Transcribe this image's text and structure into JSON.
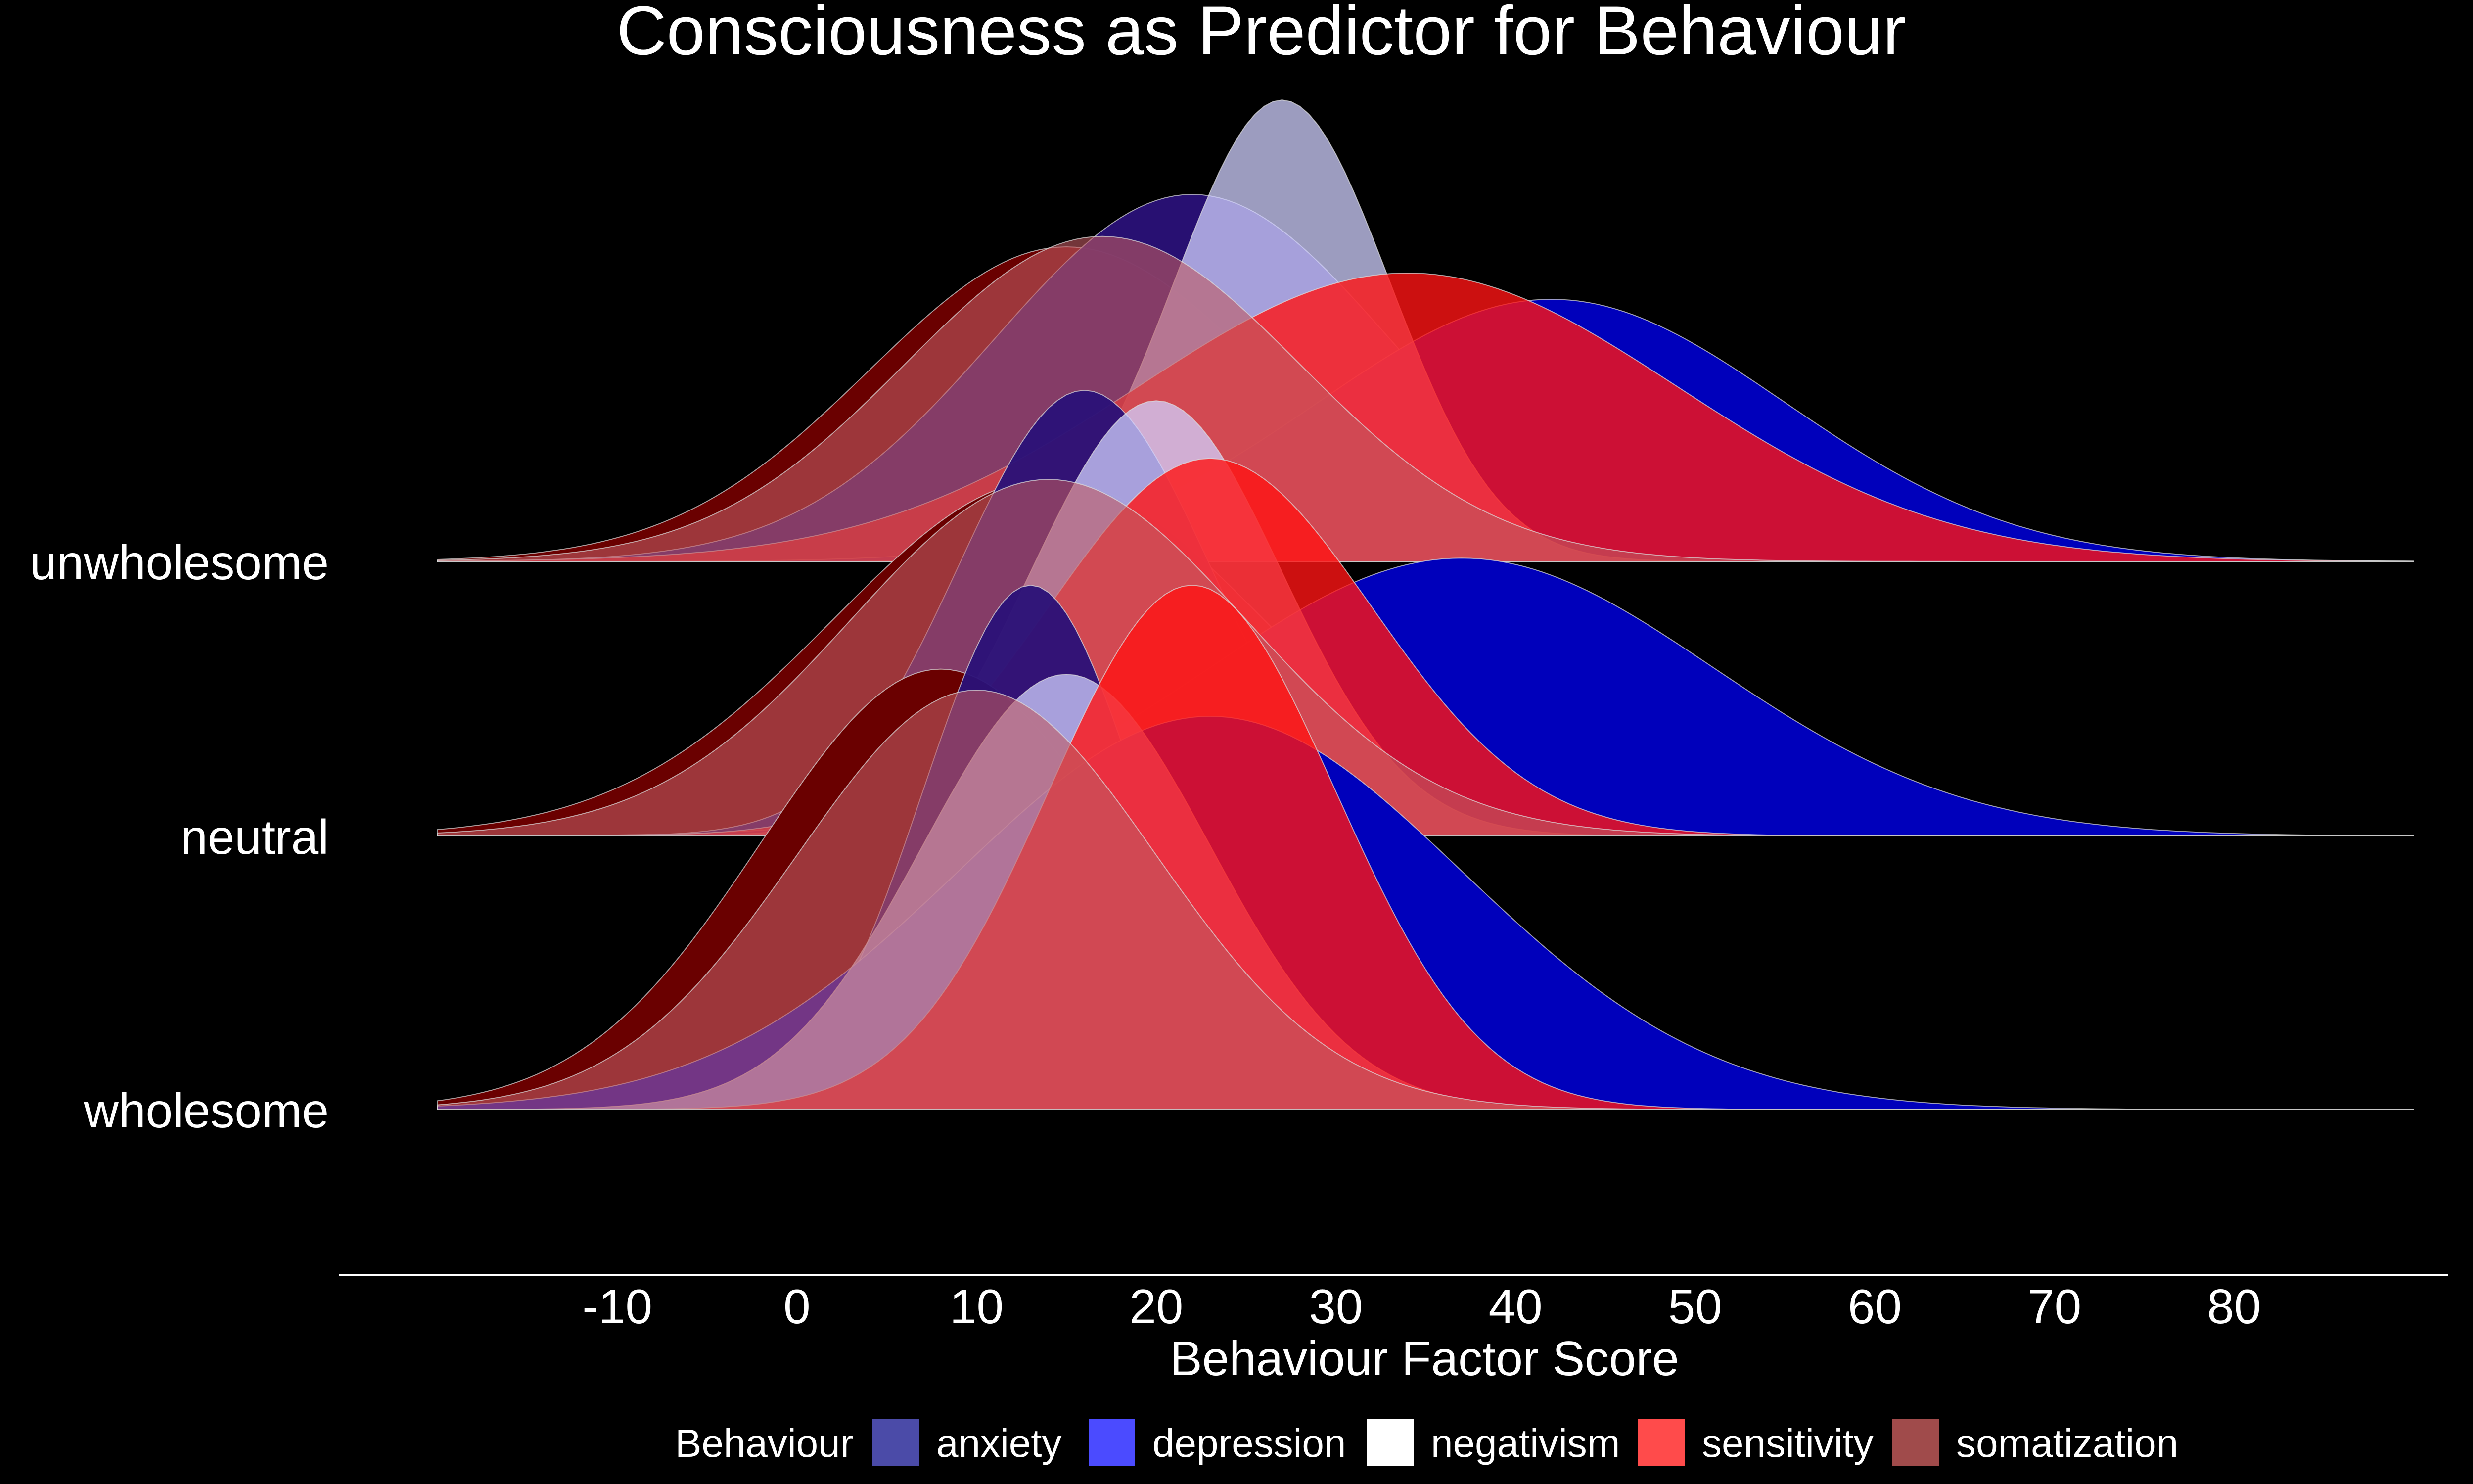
{
  "chart_data": {
    "type": "ridgeline",
    "title": "Consciousness as Predictor for Behaviour",
    "xlabel": "Behaviour Factor Score",
    "ylabel": "",
    "xlim": [
      -20,
      90
    ],
    "x_ticks": [
      -10,
      0,
      10,
      20,
      30,
      40,
      50,
      60,
      70,
      80
    ],
    "categories": [
      "wholesome",
      "neutral",
      "unwholesome"
    ],
    "legend": {
      "title": "Behaviour",
      "position": "bottom",
      "entries": [
        {
          "name": "anxiety",
          "color": "#4b4ba8"
        },
        {
          "name": "depression",
          "color": "#4b4bff"
        },
        {
          "name": "negativism",
          "color": "#ffffff"
        },
        {
          "name": "sensitivity",
          "color": "#ff4b4b"
        },
        {
          "name": "somatization",
          "color": "#a04b4b"
        }
      ]
    },
    "series": [
      {
        "name": "somatization",
        "color": "#6a0000",
        "opacity": 1.0,
        "ridges": {
          "wholesome": {
            "peak": 8,
            "sd": 10,
            "height": 0.84
          },
          "neutral": {
            "peak": 14,
            "sd": 12,
            "height": 0.68
          },
          "unwholesome": {
            "peak": 15,
            "sd": 11,
            "height": 0.6
          }
        }
      },
      {
        "name": "anxiety",
        "color": "#2a1178",
        "opacity": 0.95,
        "ridges": {
          "wholesome": {
            "peak": 13,
            "sd": 6,
            "height": 1.0
          },
          "neutral": {
            "peak": 16,
            "sd": 7,
            "height": 0.85
          },
          "unwholesome": {
            "peak": 22,
            "sd": 11,
            "height": 0.7
          }
        }
      },
      {
        "name": "depression",
        "color": "#0000bb",
        "opacity": 1.0,
        "ridges": {
          "wholesome": {
            "peak": 23,
            "sd": 14,
            "height": 0.75
          },
          "neutral": {
            "peak": 37,
            "sd": 14,
            "height": 0.53
          },
          "unwholesome": {
            "peak": 42,
            "sd": 13,
            "height": 0.5
          }
        }
      },
      {
        "name": "negativism",
        "color": "#d0d0ff",
        "opacity": 0.75,
        "ridges": {
          "wholesome": {
            "peak": 15,
            "sd": 8,
            "height": 0.83
          },
          "neutral": {
            "peak": 20,
            "sd": 7,
            "height": 0.83
          },
          "unwholesome": {
            "peak": 27,
            "sd": 6,
            "height": 0.88
          }
        }
      },
      {
        "name": "sensitivity",
        "color": "#ff1414",
        "opacity": 0.8,
        "ridges": {
          "wholesome": {
            "peak": 22,
            "sd": 8,
            "height": 1.0
          },
          "neutral": {
            "peak": 23,
            "sd": 9,
            "height": 0.72
          },
          "unwholesome": {
            "peak": 34,
            "sd": 15,
            "height": 0.55
          }
        }
      },
      {
        "name": "somatization-overlay",
        "color": "#c05a60",
        "opacity": 0.6,
        "ridges": {
          "wholesome": {
            "peak": 10,
            "sd": 10,
            "height": 0.8
          },
          "neutral": {
            "peak": 14,
            "sd": 11,
            "height": 0.68
          },
          "unwholesome": {
            "peak": 17,
            "sd": 11,
            "height": 0.62
          }
        }
      }
    ]
  }
}
